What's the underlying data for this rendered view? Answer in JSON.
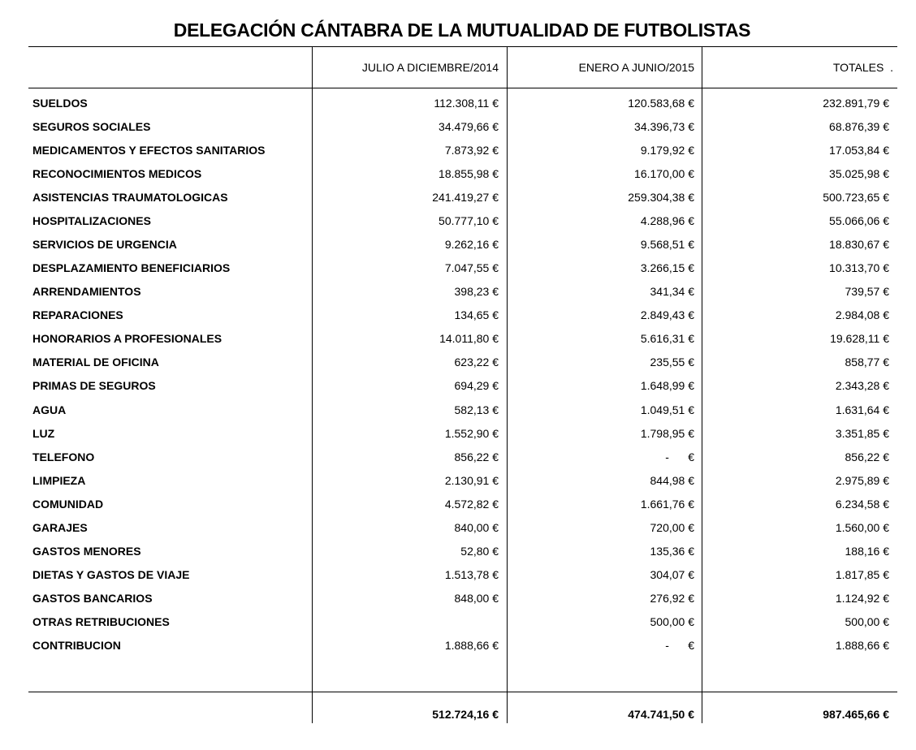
{
  "header": {
    "title": "DELEGACIÓN CÁNTABRA DE LA MUTUALIDAD DE FUTBOLISTAS"
  },
  "table": {
    "columns": [
      "JULIO A DICIEMBRE/2014",
      "ENERO A JUNIO/2015",
      "TOTALES  ."
    ],
    "rows": [
      [
        "SUELDOS",
        "112.308,11 €",
        "120.583,68 €",
        "232.891,79 €"
      ],
      [
        "SEGUROS SOCIALES",
        "34.479,66 €",
        "34.396,73 €",
        "68.876,39 €"
      ],
      [
        "MEDICAMENTOS Y EFECTOS SANITARIOS",
        "7.873,92 €",
        "9.179,92 €",
        "17.053,84 €"
      ],
      [
        "RECONOCIMIENTOS MEDICOS",
        "18.855,98 €",
        "16.170,00 €",
        "35.025,98 €"
      ],
      [
        "ASISTENCIAS TRAUMATOLOGICAS",
        "241.419,27 €",
        "259.304,38 €",
        "500.723,65 €"
      ],
      [
        "HOSPITALIZACIONES",
        "50.777,10 €",
        "4.288,96 €",
        "55.066,06 €"
      ],
      [
        "SERVICIOS DE URGENCIA",
        "9.262,16 €",
        "9.568,51 €",
        "18.830,67 €"
      ],
      [
        "DESPLAZAMIENTO BENEFICIARIOS",
        "7.047,55 €",
        "3.266,15 €",
        "10.313,70 €"
      ],
      [
        "ARRENDAMIENTOS",
        "398,23 €",
        "341,34 €",
        "739,57 €"
      ],
      [
        "REPARACIONES",
        "134,65 €",
        "2.849,43 €",
        "2.984,08 €"
      ],
      [
        "HONORARIOS A PROFESIONALES",
        "14.011,80 €",
        "5.616,31 €",
        "19.628,11 €"
      ],
      [
        "MATERIAL DE OFICINA",
        "623,22 €",
        "235,55 €",
        "858,77 €"
      ],
      [
        "PRIMAS DE SEGUROS",
        "694,29 €",
        "1.648,99 €",
        "2.343,28 €"
      ],
      [
        "AGUA",
        "582,13 €",
        "1.049,51 €",
        "1.631,64 €"
      ],
      [
        "LUZ",
        "1.552,90 €",
        "1.798,95 €",
        "3.351,85 €"
      ],
      [
        "TELEFONO",
        "856,22 €",
        "-      €",
        "856,22 €"
      ],
      [
        "LIMPIEZA",
        "2.130,91 €",
        "844,98 €",
        "2.975,89 €"
      ],
      [
        "COMUNIDAD",
        "4.572,82 €",
        "1.661,76 €",
        "6.234,58 €"
      ],
      [
        "GARAJES",
        "840,00 €",
        "720,00 €",
        "1.560,00 €"
      ],
      [
        "GASTOS MENORES",
        "52,80 €",
        "135,36 €",
        "188,16 €"
      ],
      [
        "DIETAS Y GASTOS DE VIAJE",
        "1.513,78 €",
        "304,07 €",
        "1.817,85 €"
      ],
      [
        "GASTOS BANCARIOS",
        "848,00 €",
        "276,92 €",
        "1.124,92 €"
      ],
      [
        "OTRAS RETRIBUCIONES",
        null,
        "500,00 €",
        "500,00 €"
      ],
      [
        "CONTRIBUCION",
        "1.888,66 €",
        "-      €",
        "1.888,66 €"
      ]
    ],
    "totals": [
      "512.724,16 €",
      "474.741,50 €",
      "987.465,66 €"
    ]
  }
}
